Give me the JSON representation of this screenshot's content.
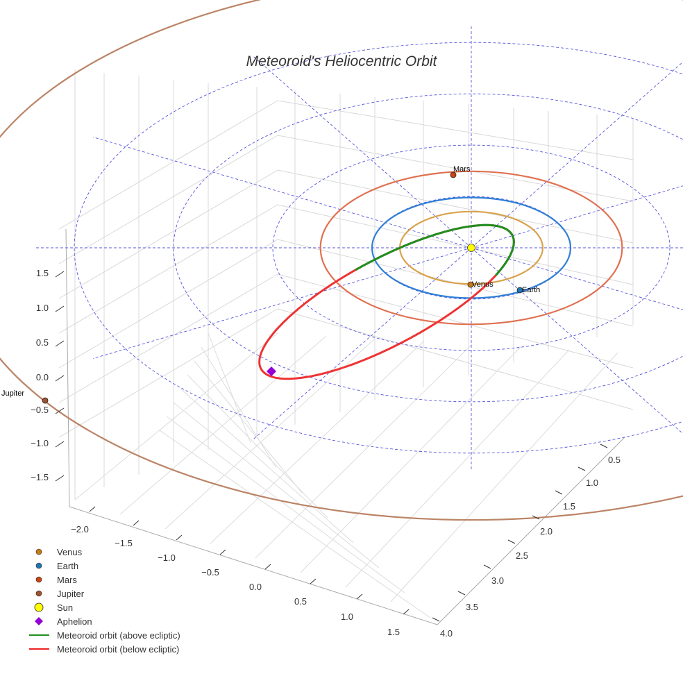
{
  "chart_data": {
    "type": "line",
    "title": "Meteoroid's Heliocentric Orbit",
    "projection": "3d",
    "axes": {
      "x_ticks": [
        "−2.0",
        "−1.5",
        "−1.0",
        "−0.5",
        "0.0",
        "0.5",
        "1.0",
        "1.5"
      ],
      "y_ticks": [
        "0.5",
        "1.0",
        "1.5",
        "2.0",
        "2.5",
        "3.0",
        "3.5",
        "4.0"
      ],
      "z_ticks": [
        "1.5",
        "1.0",
        "0.5",
        "0.0",
        "−0.5",
        "−1.0",
        "−1.5"
      ]
    },
    "orbits": [
      {
        "name": "Venus",
        "radius_au": 0.72,
        "color": "#d9a24a"
      },
      {
        "name": "Earth",
        "radius_au": 1.0,
        "color": "#2f7fd6"
      },
      {
        "name": "Mars",
        "radius_au": 1.52,
        "color": "#e07050"
      },
      {
        "name": "Jupiter",
        "radius_au": 5.2,
        "color": "#bb8466"
      }
    ],
    "grid_rings_au": [
      1,
      2,
      3,
      4
    ],
    "planet_labels": [
      "Venus",
      "Earth",
      "Mars",
      "Jupiter"
    ],
    "meteoroid": {
      "above_color": "#1f8f1f",
      "below_color": "#ee3333",
      "aphelion_color": "#9400d3"
    },
    "legend": {
      "placement": "lower-left",
      "entries": [
        {
          "label": "Venus",
          "marker": "dot",
          "color": "#c97a12"
        },
        {
          "label": "Earth",
          "marker": "dot",
          "color": "#1f77b4"
        },
        {
          "label": "Mars",
          "marker": "dot",
          "color": "#cc4411"
        },
        {
          "label": "Jupiter",
          "marker": "dot",
          "color": "#a0522d"
        },
        {
          "label": "Sun",
          "marker": "big-dot",
          "color": "#ffff00"
        },
        {
          "label": "Aphelion",
          "marker": "diamond",
          "color": "#9400d3"
        },
        {
          "label": "Meteoroid orbit (above ecliptic)",
          "marker": "line",
          "color": "#1f8f1f"
        },
        {
          "label": "Meteoroid orbit (below ecliptic)",
          "marker": "line",
          "color": "#ee2222"
        }
      ]
    }
  }
}
